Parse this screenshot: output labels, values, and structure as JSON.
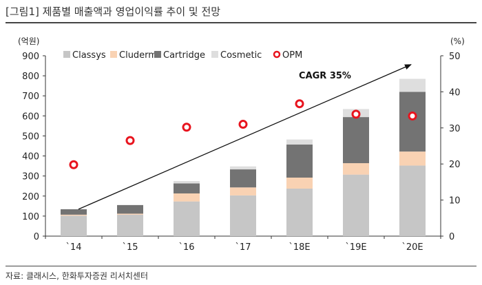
{
  "figure_title": "[그림1]  제품별 매출액과 영업이익률 추이 및 전망",
  "source": "자료: 클래시스, 한화투자증권 리서치센터",
  "chart_data": {
    "type": "bar",
    "stacked": true,
    "categories": [
      "`14",
      "`15",
      "`16",
      "`17",
      "`18E",
      "`19E",
      "`20E"
    ],
    "series": [
      {
        "name": "Classys",
        "color": "#c6c6c6",
        "values": [
          102,
          107,
          173,
          203,
          237,
          307,
          352
        ]
      },
      {
        "name": "Cluderm",
        "color": "#f9d2b3",
        "values": [
          5,
          5,
          40,
          40,
          55,
          57,
          70
        ]
      },
      {
        "name": "Cartridge",
        "color": "#737373",
        "values": [
          27,
          43,
          50,
          90,
          165,
          230,
          298
        ]
      },
      {
        "name": "Cosmetic",
        "color": "#dedede",
        "values": [
          1,
          1,
          12,
          15,
          25,
          40,
          65
        ]
      }
    ],
    "line_series": {
      "name": "OPM",
      "axis": "right",
      "marker": "circle-open",
      "color": "#e8141e",
      "values": [
        19.8,
        26.5,
        30.2,
        31.0,
        36.7,
        33.8,
        33.3
      ]
    },
    "ylabel_left": "(억원)",
    "ylabel_right": "(%)",
    "ylim_left": [
      0,
      900
    ],
    "yticks_left": [
      0,
      100,
      200,
      300,
      400,
      500,
      600,
      700,
      800,
      900
    ],
    "ylim_right": [
      0,
      50
    ],
    "yticks_right": [
      0,
      10,
      20,
      30,
      40,
      50
    ],
    "annotation": "CAGR 35%",
    "legend_position": "top-left",
    "grid": false
  }
}
